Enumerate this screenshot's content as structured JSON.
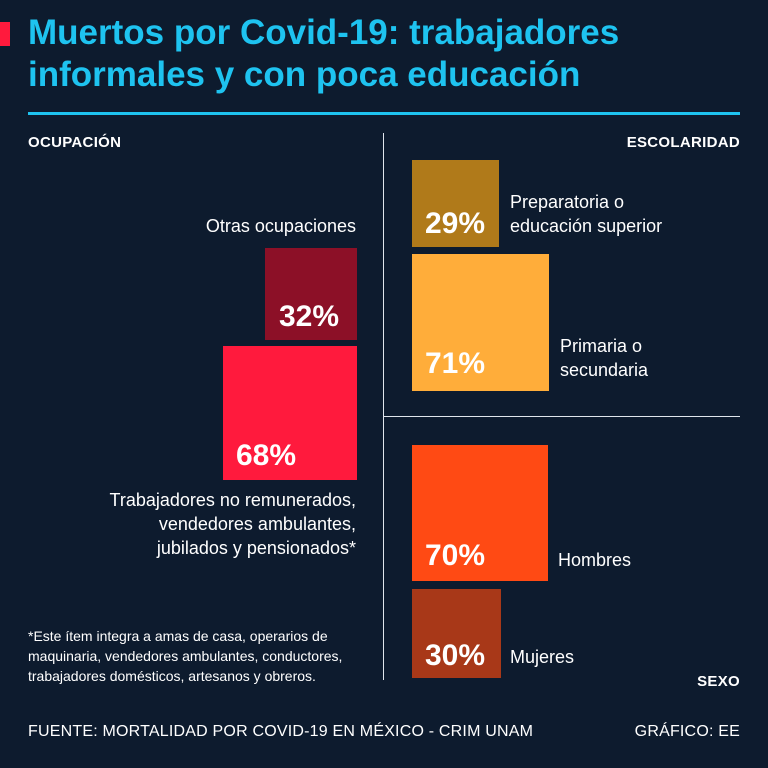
{
  "title": "Muertos por Covid-19: trabajadores informales y con poca educación",
  "colors": {
    "background": "#0d1b2e",
    "title": "#1ec3f0",
    "ocupacion_label": "#ff1a3d",
    "escolaridad_label": "#f5a623",
    "sexo_label": "#ff5a1f"
  },
  "chart_data": [
    {
      "type": "proportional-squares",
      "section": "OCUPACIÓN",
      "categories": [
        "Otras ocupaciones",
        "Trabajadores no remunerados, vendedores ambulantes, jubilados y pensionados*"
      ],
      "values": [
        32,
        68
      ],
      "value_labels": [
        "32%",
        "68%"
      ],
      "colors": [
        "#8c1027",
        "#ff1a3d"
      ]
    },
    {
      "type": "proportional-squares",
      "section": "ESCOLARIDAD",
      "categories": [
        "Preparatoria o educación superior",
        "Primaria o secundaria"
      ],
      "values": [
        29,
        71
      ],
      "value_labels": [
        "29%",
        "71%"
      ],
      "colors": [
        "#b07a1a",
        "#ffad3a"
      ]
    },
    {
      "type": "proportional-squares",
      "section": "SEXO",
      "categories": [
        "Hombres",
        "Mujeres"
      ],
      "values": [
        70,
        30
      ],
      "value_labels": [
        "70%",
        "30%"
      ],
      "colors": [
        "#ff4a14",
        "#a83818"
      ]
    }
  ],
  "ocupacion": {
    "otras_label": "Otras ocupaciones",
    "otras_pct": "32%",
    "trab_pct": "68%",
    "trab_label_1": "Trabajadores no remunerados,",
    "trab_label_2": "vendedores ambulantes,",
    "trab_label_3": "jubilados y pensionados*"
  },
  "escolaridad": {
    "prep_pct": "29%",
    "prep_label_1": "Preparatoria o",
    "prep_label_2": "educación superior",
    "prim_pct": "71%",
    "prim_label_1": "Primaria o",
    "prim_label_2": "secundaria"
  },
  "sexo": {
    "hombres_pct": "70%",
    "hombres_label": "Hombres",
    "mujeres_pct": "30%",
    "mujeres_label": "Mujeres"
  },
  "note": "*Este ítem integra a amas de casa, operarios de maquinaria, vendedores ambulantes, conductores, trabajadores domésticos, artesanos y obreros.",
  "footer": {
    "source": "FUENTE: MORTALIDAD POR COVID-19 EN MÉXICO - CRIM UNAM",
    "credit": "GRÁFICO: EE"
  }
}
